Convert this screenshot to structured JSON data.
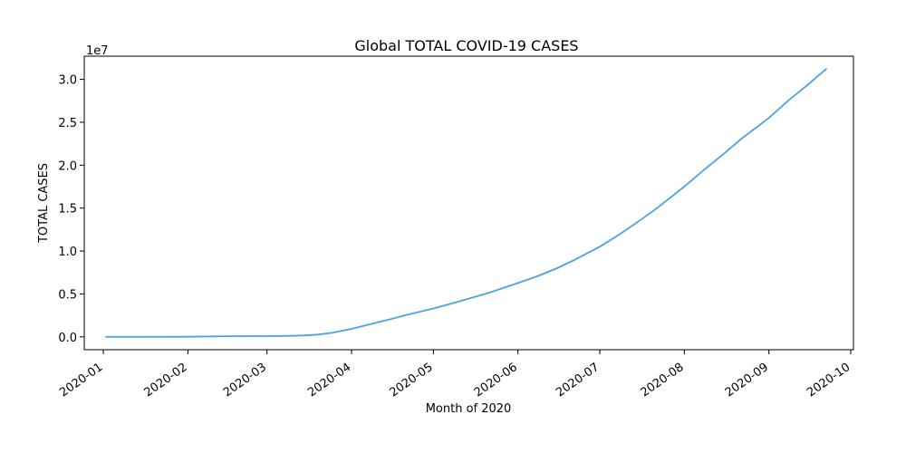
{
  "chart_data": {
    "type": "line",
    "title": "Global TOTAL COVID-19 CASES",
    "xlabel": "Month of 2020",
    "ylabel": "TOTAL CASES",
    "y_offset_label": "1e7",
    "y_scale_factor": 10000000,
    "xlim": [
      "2019-12-25",
      "2020-10-02"
    ],
    "ylim": [
      -1500000,
      32700000
    ],
    "grid": false,
    "legend": "none",
    "color": "#4ba3e0",
    "x_ticks": [
      "2020-01-01",
      "2020-02-01",
      "2020-03-01",
      "2020-04-01",
      "2020-05-01",
      "2020-06-01",
      "2020-07-01",
      "2020-08-01",
      "2020-09-01",
      "2020-10-01"
    ],
    "x_tick_labels": [
      "2020-01",
      "2020-02",
      "2020-03",
      "2020-04",
      "2020-05",
      "2020-06",
      "2020-07",
      "2020-08",
      "2020-09",
      "2020-10"
    ],
    "y_ticks": [
      0,
      5000000,
      10000000,
      15000000,
      20000000,
      25000000,
      30000000
    ],
    "y_tick_labels": [
      "0.0",
      "0.5",
      "1.0",
      "1.5",
      "2.0",
      "2.5",
      "3.0"
    ],
    "series": [
      {
        "x": [
          "2020-01-02",
          "2020-01-15",
          "2020-02-01",
          "2020-02-15",
          "2020-03-01",
          "2020-03-10",
          "2020-03-15",
          "2020-03-20",
          "2020-03-25",
          "2020-04-01",
          "2020-04-08",
          "2020-04-15",
          "2020-04-22",
          "2020-05-01",
          "2020-05-08",
          "2020-05-15",
          "2020-05-22",
          "2020-06-01",
          "2020-06-08",
          "2020-06-15",
          "2020-06-22",
          "2020-07-01",
          "2020-07-08",
          "2020-07-15",
          "2020-07-22",
          "2020-08-01",
          "2020-08-08",
          "2020-08-15",
          "2020-08-22",
          "2020-09-01",
          "2020-09-08",
          "2020-09-15",
          "2020-09-22"
        ],
        "y": [
          300,
          2000,
          12000,
          69000,
          88000,
          120000,
          170000,
          270000,
          470000,
          930000,
          1480000,
          2040000,
          2620000,
          3300000,
          3900000,
          4540000,
          5200000,
          6270000,
          7050000,
          7950000,
          9000000,
          10500000,
          11900000,
          13400000,
          15000000,
          17500000,
          19400000,
          21200000,
          23100000,
          25500000,
          27500000,
          29300000,
          31200000
        ]
      }
    ]
  }
}
